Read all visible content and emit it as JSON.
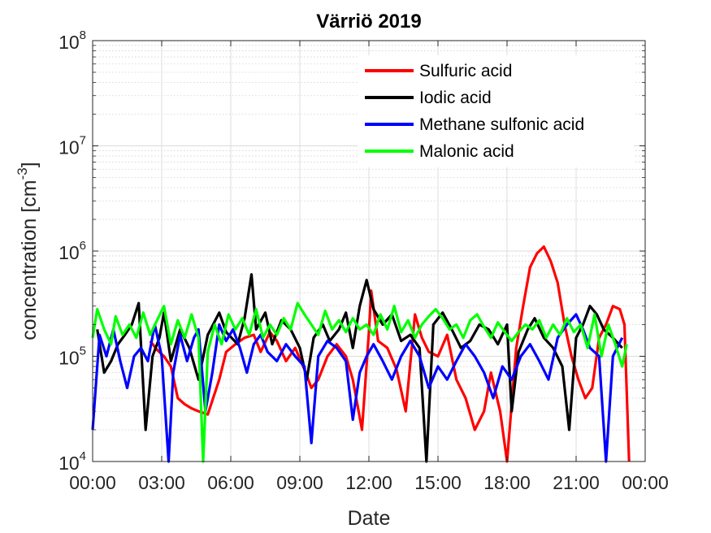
{
  "chart_data": {
    "type": "line",
    "title": "Värriö 2019",
    "xlabel": "Date",
    "ylabel": "concentration [cm",
    "ylabel_sup": "-3",
    "ylabel_close": "]",
    "y_scale": "log",
    "ylim": [
      10000,
      100000000
    ],
    "y_ticks": [
      {
        "value": 10000,
        "base": "10",
        "exp": "4"
      },
      {
        "value": 100000,
        "base": "10",
        "exp": "5"
      },
      {
        "value": 1000000,
        "base": "10",
        "exp": "6"
      },
      {
        "value": 10000000,
        "base": "10",
        "exp": "7"
      },
      {
        "value": 100000000,
        "base": "10",
        "exp": "8"
      }
    ],
    "xlim": [
      "00:00",
      "24:00"
    ],
    "x_ticks": [
      {
        "hour": 0,
        "label": "00:00"
      },
      {
        "hour": 3,
        "label": "03:00"
      },
      {
        "hour": 6,
        "label": "06:00"
      },
      {
        "hour": 9,
        "label": "09:00"
      },
      {
        "hour": 12,
        "label": "12:00"
      },
      {
        "hour": 15,
        "label": "15:00"
      },
      {
        "hour": 18,
        "label": "18:00"
      },
      {
        "hour": 21,
        "label": "21:00"
      },
      {
        "hour": 24,
        "label": "00:00"
      }
    ],
    "grid": true,
    "legend_position": "top-right",
    "series": [
      {
        "name": "Sulfuric acid",
        "color": "#ff0000",
        "points": [
          [
            2.5,
            140000
          ],
          [
            2.8,
            115000
          ],
          [
            3.1,
            100000
          ],
          [
            3.4,
            80000
          ],
          [
            3.7,
            40000
          ],
          [
            4.0,
            35000
          ],
          [
            4.3,
            32000
          ],
          [
            4.6,
            30000
          ],
          [
            5.0,
            28000
          ],
          [
            5.5,
            60000
          ],
          [
            5.8,
            110000
          ],
          [
            6.2,
            130000
          ],
          [
            6.6,
            150000
          ],
          [
            7.0,
            160000
          ],
          [
            7.3,
            110000
          ],
          [
            7.7,
            170000
          ],
          [
            8.0,
            140000
          ],
          [
            8.4,
            90000
          ],
          [
            8.8,
            120000
          ],
          [
            9.2,
            75000
          ],
          [
            9.5,
            50000
          ],
          [
            9.8,
            60000
          ],
          [
            10.2,
            100000
          ],
          [
            10.6,
            130000
          ],
          [
            11.0,
            100000
          ],
          [
            11.3,
            60000
          ],
          [
            11.7,
            20000
          ],
          [
            12.0,
            170000
          ],
          [
            12.1,
            420000
          ],
          [
            12.4,
            140000
          ],
          [
            12.8,
            120000
          ],
          [
            13.2,
            75000
          ],
          [
            13.6,
            30000
          ],
          [
            14.0,
            250000
          ],
          [
            14.3,
            150000
          ],
          [
            14.6,
            110000
          ],
          [
            15.0,
            100000
          ],
          [
            15.4,
            160000
          ],
          [
            15.8,
            60000
          ],
          [
            16.2,
            40000
          ],
          [
            16.6,
            20000
          ],
          [
            17.0,
            30000
          ],
          [
            17.3,
            70000
          ],
          [
            17.7,
            30000
          ],
          [
            18.0,
            10000
          ],
          [
            18.4,
            120000
          ],
          [
            18.7,
            300000
          ],
          [
            19.0,
            700000
          ],
          [
            19.3,
            950000
          ],
          [
            19.6,
            1100000
          ],
          [
            19.9,
            800000
          ],
          [
            20.2,
            500000
          ],
          [
            20.5,
            200000
          ],
          [
            20.8,
            100000
          ],
          [
            21.1,
            60000
          ],
          [
            21.4,
            40000
          ],
          [
            21.7,
            50000
          ],
          [
            22.0,
            150000
          ],
          [
            22.3,
            200000
          ],
          [
            22.6,
            300000
          ],
          [
            22.9,
            280000
          ],
          [
            23.1,
            200000
          ],
          [
            23.3,
            10000
          ]
        ]
      },
      {
        "name": "Iodic acid",
        "color": "#000000",
        "points": [
          [
            0.2,
            180000
          ],
          [
            0.5,
            70000
          ],
          [
            0.8,
            90000
          ],
          [
            1.1,
            130000
          ],
          [
            1.4,
            160000
          ],
          [
            1.7,
            200000
          ],
          [
            2.0,
            320000
          ],
          [
            2.3,
            20000
          ],
          [
            2.6,
            100000
          ],
          [
            2.9,
            150000
          ],
          [
            3.1,
            260000
          ],
          [
            3.4,
            90000
          ],
          [
            3.8,
            180000
          ],
          [
            4.2,
            120000
          ],
          [
            4.6,
            60000
          ],
          [
            5.0,
            160000
          ],
          [
            5.5,
            260000
          ],
          [
            5.8,
            170000
          ],
          [
            6.3,
            130000
          ],
          [
            6.6,
            230000
          ],
          [
            6.9,
            600000
          ],
          [
            7.1,
            180000
          ],
          [
            7.5,
            260000
          ],
          [
            7.8,
            130000
          ],
          [
            8.2,
            220000
          ],
          [
            8.6,
            180000
          ],
          [
            9.0,
            120000
          ],
          [
            9.3,
            60000
          ],
          [
            9.6,
            150000
          ],
          [
            10.0,
            200000
          ],
          [
            10.3,
            140000
          ],
          [
            10.7,
            180000
          ],
          [
            11.0,
            260000
          ],
          [
            11.3,
            120000
          ],
          [
            11.6,
            300000
          ],
          [
            11.9,
            530000
          ],
          [
            12.2,
            280000
          ],
          [
            12.6,
            200000
          ],
          [
            13.0,
            250000
          ],
          [
            13.4,
            140000
          ],
          [
            13.8,
            160000
          ],
          [
            14.2,
            120000
          ],
          [
            14.5,
            10000
          ],
          [
            14.8,
            200000
          ],
          [
            15.2,
            260000
          ],
          [
            15.6,
            180000
          ],
          [
            16.0,
            120000
          ],
          [
            16.4,
            140000
          ],
          [
            16.8,
            200000
          ],
          [
            17.2,
            180000
          ],
          [
            17.6,
            130000
          ],
          [
            18.0,
            200000
          ],
          [
            18.2,
            30000
          ],
          [
            18.5,
            110000
          ],
          [
            18.9,
            180000
          ],
          [
            19.2,
            230000
          ],
          [
            19.6,
            150000
          ],
          [
            20.0,
            120000
          ],
          [
            20.4,
            80000
          ],
          [
            20.7,
            20000
          ],
          [
            21.0,
            150000
          ],
          [
            21.3,
            200000
          ],
          [
            21.6,
            300000
          ],
          [
            21.9,
            250000
          ],
          [
            22.2,
            180000
          ],
          [
            22.6,
            150000
          ],
          [
            23.0,
            120000
          ]
        ]
      },
      {
        "name": "Methane sulfonic acid",
        "color": "#0000ff",
        "points": [
          [
            0.0,
            20000
          ],
          [
            0.3,
            160000
          ],
          [
            0.6,
            100000
          ],
          [
            0.9,
            180000
          ],
          [
            1.2,
            90000
          ],
          [
            1.5,
            50000
          ],
          [
            1.8,
            100000
          ],
          [
            2.1,
            120000
          ],
          [
            2.4,
            90000
          ],
          [
            2.7,
            200000
          ],
          [
            3.0,
            100000
          ],
          [
            3.3,
            10000
          ],
          [
            3.5,
            70000
          ],
          [
            3.8,
            160000
          ],
          [
            4.1,
            90000
          ],
          [
            4.4,
            150000
          ],
          [
            4.6,
            180000
          ],
          [
            4.9,
            30000
          ],
          [
            5.2,
            70000
          ],
          [
            5.5,
            200000
          ],
          [
            5.8,
            140000
          ],
          [
            6.1,
            180000
          ],
          [
            6.4,
            120000
          ],
          [
            6.7,
            70000
          ],
          [
            7.0,
            130000
          ],
          [
            7.3,
            160000
          ],
          [
            7.6,
            110000
          ],
          [
            8.0,
            90000
          ],
          [
            8.4,
            130000
          ],
          [
            8.8,
            100000
          ],
          [
            9.2,
            80000
          ],
          [
            9.5,
            15000
          ],
          [
            9.8,
            100000
          ],
          [
            10.2,
            140000
          ],
          [
            10.6,
            120000
          ],
          [
            11.0,
            90000
          ],
          [
            11.3,
            25000
          ],
          [
            11.6,
            70000
          ],
          [
            11.9,
            100000
          ],
          [
            12.2,
            130000
          ],
          [
            12.6,
            90000
          ],
          [
            13.0,
            60000
          ],
          [
            13.4,
            100000
          ],
          [
            13.8,
            140000
          ],
          [
            14.2,
            100000
          ],
          [
            14.6,
            50000
          ],
          [
            15.0,
            80000
          ],
          [
            15.4,
            60000
          ],
          [
            15.8,
            90000
          ],
          [
            16.2,
            130000
          ],
          [
            16.6,
            100000
          ],
          [
            17.0,
            70000
          ],
          [
            17.4,
            40000
          ],
          [
            17.8,
            80000
          ],
          [
            18.2,
            60000
          ],
          [
            18.6,
            100000
          ],
          [
            19.0,
            130000
          ],
          [
            19.4,
            90000
          ],
          [
            19.8,
            60000
          ],
          [
            20.2,
            150000
          ],
          [
            20.6,
            200000
          ],
          [
            21.0,
            250000
          ],
          [
            21.3,
            180000
          ],
          [
            21.6,
            120000
          ],
          [
            22.0,
            100000
          ],
          [
            22.3,
            10000
          ],
          [
            22.6,
            100000
          ],
          [
            23.0,
            150000
          ]
        ]
      },
      {
        "name": "Malonic acid",
        "color": "#00ff00",
        "points": [
          [
            0.0,
            150000
          ],
          [
            0.2,
            280000
          ],
          [
            0.5,
            180000
          ],
          [
            0.8,
            130000
          ],
          [
            1.0,
            240000
          ],
          [
            1.3,
            160000
          ],
          [
            1.6,
            200000
          ],
          [
            1.9,
            150000
          ],
          [
            2.2,
            260000
          ],
          [
            2.5,
            160000
          ],
          [
            2.8,
            220000
          ],
          [
            3.1,
            300000
          ],
          [
            3.4,
            130000
          ],
          [
            3.7,
            220000
          ],
          [
            4.0,
            150000
          ],
          [
            4.3,
            250000
          ],
          [
            4.6,
            150000
          ],
          [
            4.8,
            10000
          ],
          [
            5.0,
            110000
          ],
          [
            5.3,
            200000
          ],
          [
            5.6,
            130000
          ],
          [
            5.9,
            250000
          ],
          [
            6.2,
            180000
          ],
          [
            6.5,
            230000
          ],
          [
            6.8,
            160000
          ],
          [
            7.1,
            280000
          ],
          [
            7.4,
            150000
          ],
          [
            7.7,
            200000
          ],
          [
            8.0,
            160000
          ],
          [
            8.3,
            230000
          ],
          [
            8.6,
            180000
          ],
          [
            8.9,
            320000
          ],
          [
            9.2,
            250000
          ],
          [
            9.5,
            200000
          ],
          [
            9.8,
            160000
          ],
          [
            10.1,
            270000
          ],
          [
            10.4,
            180000
          ],
          [
            10.7,
            220000
          ],
          [
            11.0,
            170000
          ],
          [
            11.3,
            230000
          ],
          [
            11.6,
            180000
          ],
          [
            11.9,
            200000
          ],
          [
            12.2,
            160000
          ],
          [
            12.5,
            250000
          ],
          [
            12.8,
            180000
          ],
          [
            13.1,
            300000
          ],
          [
            13.4,
            170000
          ],
          [
            13.7,
            220000
          ],
          [
            14.0,
            150000
          ],
          [
            14.3,
            200000
          ],
          [
            14.6,
            240000
          ],
          [
            14.9,
            280000
          ],
          [
            15.2,
            230000
          ],
          [
            15.5,
            180000
          ],
          [
            15.8,
            200000
          ],
          [
            16.1,
            150000
          ],
          [
            16.4,
            220000
          ],
          [
            16.7,
            250000
          ],
          [
            17.0,
            190000
          ],
          [
            17.3,
            150000
          ],
          [
            17.6,
            210000
          ],
          [
            17.9,
            170000
          ],
          [
            18.2,
            140000
          ],
          [
            18.5,
            170000
          ],
          [
            18.8,
            200000
          ],
          [
            19.1,
            180000
          ],
          [
            19.4,
            220000
          ],
          [
            19.7,
            150000
          ],
          [
            20.0,
            200000
          ],
          [
            20.3,
            160000
          ],
          [
            20.6,
            230000
          ],
          [
            20.9,
            170000
          ],
          [
            21.2,
            200000
          ],
          [
            21.5,
            120000
          ],
          [
            21.8,
            250000
          ],
          [
            22.1,
            100000
          ],
          [
            22.4,
            200000
          ],
          [
            22.7,
            130000
          ],
          [
            23.0,
            80000
          ],
          [
            23.2,
            130000
          ]
        ]
      }
    ]
  }
}
